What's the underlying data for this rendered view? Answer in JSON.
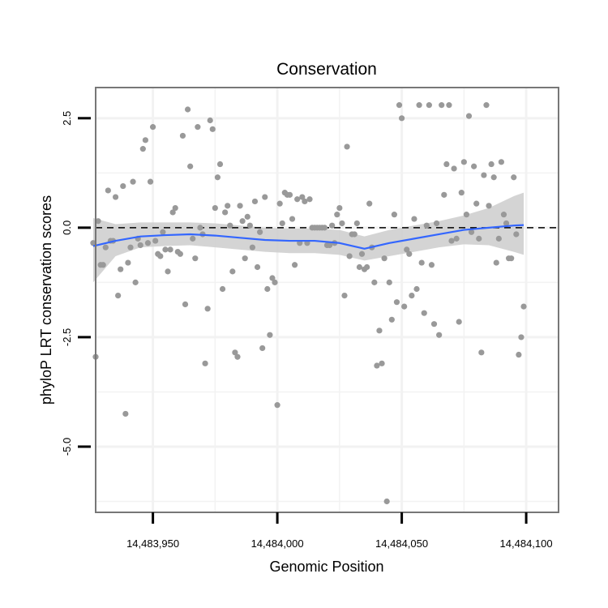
{
  "chart_data": {
    "type": "scatter",
    "title": "Conservation",
    "xlabel": "Genomic Position",
    "ylabel": "phyloP LRT conservation scores",
    "xlim": [
      14483927,
      14484113
    ],
    "ylim": [
      -6.5,
      3.2
    ],
    "x_ticks": [
      14483950,
      14484000,
      14484050,
      14484100
    ],
    "x_tick_labels": [
      "14,483,950",
      "14,484,000",
      "14,484,050",
      "14,484,100"
    ],
    "y_ticks": [
      -5.0,
      -2.5,
      0.0,
      2.5
    ],
    "y_tick_labels": [
      "-5.0",
      "-2.5",
      "0.0",
      "2.5"
    ],
    "reference_line": {
      "y": 0,
      "style": "dashed"
    },
    "grid": true,
    "colors": {
      "points": "#999999",
      "smooth_line": "#3366ff",
      "confidence_band": "#cccccc",
      "panel_border": "#777777",
      "grid": "#f2f2f2",
      "reference_line": "#000000"
    },
    "points": [
      {
        "x": 14483926,
        "y": -0.35
      },
      {
        "x": 14483927,
        "y": -2.95
      },
      {
        "x": 14483928,
        "y": 0.15
      },
      {
        "x": 14483929,
        "y": -0.85
      },
      {
        "x": 14483930,
        "y": -0.85
      },
      {
        "x": 14483931,
        "y": -0.45
      },
      {
        "x": 14483932,
        "y": 0.85
      },
      {
        "x": 14483933,
        "y": -0.3
      },
      {
        "x": 14483934,
        "y": -0.3
      },
      {
        "x": 14483935,
        "y": 0.7
      },
      {
        "x": 14483936,
        "y": -1.55
      },
      {
        "x": 14483937,
        "y": -0.95
      },
      {
        "x": 14483938,
        "y": 0.95
      },
      {
        "x": 14483939,
        "y": -4.25
      },
      {
        "x": 14483940,
        "y": -0.8
      },
      {
        "x": 14483941,
        "y": -0.45
      },
      {
        "x": 14483942,
        "y": 1.05
      },
      {
        "x": 14483943,
        "y": -1.25
      },
      {
        "x": 14483944,
        "y": -0.25
      },
      {
        "x": 14483945,
        "y": -0.4
      },
      {
        "x": 14483946,
        "y": 1.8
      },
      {
        "x": 14483947,
        "y": 2.0
      },
      {
        "x": 14483948,
        "y": -0.35
      },
      {
        "x": 14483949,
        "y": 1.05
      },
      {
        "x": 14483950,
        "y": 2.3
      },
      {
        "x": 14483951,
        "y": -0.3
      },
      {
        "x": 14483952,
        "y": -0.6
      },
      {
        "x": 14483953,
        "y": -0.65
      },
      {
        "x": 14483954,
        "y": -0.1
      },
      {
        "x": 14483955,
        "y": -0.5
      },
      {
        "x": 14483956,
        "y": -1.0
      },
      {
        "x": 14483957,
        "y": -0.5
      },
      {
        "x": 14483958,
        "y": 0.35
      },
      {
        "x": 14483959,
        "y": 0.45
      },
      {
        "x": 14483960,
        "y": -0.55
      },
      {
        "x": 14483961,
        "y": -0.6
      },
      {
        "x": 14483962,
        "y": 2.1
      },
      {
        "x": 14483963,
        "y": -1.75
      },
      {
        "x": 14483964,
        "y": 2.7
      },
      {
        "x": 14483965,
        "y": 1.4
      },
      {
        "x": 14483966,
        "y": -0.25
      },
      {
        "x": 14483967,
        "y": -0.7
      },
      {
        "x": 14483968,
        "y": 2.3
      },
      {
        "x": 14483969,
        "y": 0.0
      },
      {
        "x": 14483970,
        "y": -0.15
      },
      {
        "x": 14483971,
        "y": -3.1
      },
      {
        "x": 14483972,
        "y": -1.85
      },
      {
        "x": 14483973,
        "y": 2.45
      },
      {
        "x": 14483974,
        "y": 2.25
      },
      {
        "x": 14483975,
        "y": 0.45
      },
      {
        "x": 14483976,
        "y": 1.15
      },
      {
        "x": 14483977,
        "y": 1.45
      },
      {
        "x": 14483978,
        "y": -1.4
      },
      {
        "x": 14483979,
        "y": 0.35
      },
      {
        "x": 14483980,
        "y": 0.5
      },
      {
        "x": 14483981,
        "y": 0.05
      },
      {
        "x": 14483982,
        "y": -1.0
      },
      {
        "x": 14483983,
        "y": -2.85
      },
      {
        "x": 14483984,
        "y": -2.95
      },
      {
        "x": 14483985,
        "y": 0.5
      },
      {
        "x": 14483986,
        "y": 0.15
      },
      {
        "x": 14483987,
        "y": -0.7
      },
      {
        "x": 14483988,
        "y": 0.25
      },
      {
        "x": 14483989,
        "y": 0.05
      },
      {
        "x": 14483990,
        "y": -0.45
      },
      {
        "x": 14483991,
        "y": 0.6
      },
      {
        "x": 14483992,
        "y": -0.9
      },
      {
        "x": 14483993,
        "y": -0.1
      },
      {
        "x": 14483994,
        "y": -2.75
      },
      {
        "x": 14483995,
        "y": 0.7
      },
      {
        "x": 14483996,
        "y": -1.4
      },
      {
        "x": 14483997,
        "y": -2.45
      },
      {
        "x": 14483998,
        "y": -1.15
      },
      {
        "x": 14483999,
        "y": -1.25
      },
      {
        "x": 14484000,
        "y": -4.05
      },
      {
        "x": 14484001,
        "y": 0.55
      },
      {
        "x": 14484002,
        "y": 0.1
      },
      {
        "x": 14484003,
        "y": 0.8
      },
      {
        "x": 14484004,
        "y": 0.75
      },
      {
        "x": 14484005,
        "y": 0.75
      },
      {
        "x": 14484006,
        "y": 0.2
      },
      {
        "x": 14484007,
        "y": -0.85
      },
      {
        "x": 14484008,
        "y": 0.65
      },
      {
        "x": 14484009,
        "y": -0.35
      },
      {
        "x": 14484010,
        "y": 0.7
      },
      {
        "x": 14484011,
        "y": 0.6
      },
      {
        "x": 14484012,
        "y": -0.35
      },
      {
        "x": 14484013,
        "y": 0.65
      },
      {
        "x": 14484014,
        "y": 0.0
      },
      {
        "x": 14484015,
        "y": 0.0
      },
      {
        "x": 14484016,
        "y": 0.0
      },
      {
        "x": 14484017,
        "y": 0.0
      },
      {
        "x": 14484018,
        "y": 0.0
      },
      {
        "x": 14484019,
        "y": 0.0
      },
      {
        "x": 14484020,
        "y": -0.4
      },
      {
        "x": 14484021,
        "y": -0.4
      },
      {
        "x": 14484022,
        "y": 0.05
      },
      {
        "x": 14484023,
        "y": -0.35
      },
      {
        "x": 14484024,
        "y": 0.3
      },
      {
        "x": 14484025,
        "y": 0.45
      },
      {
        "x": 14484026,
        "y": 0.1
      },
      {
        "x": 14484027,
        "y": -1.55
      },
      {
        "x": 14484028,
        "y": 1.85
      },
      {
        "x": 14484029,
        "y": -0.65
      },
      {
        "x": 14484030,
        "y": -0.15
      },
      {
        "x": 14484031,
        "y": -0.15
      },
      {
        "x": 14484032,
        "y": 0.1
      },
      {
        "x": 14484033,
        "y": -0.9
      },
      {
        "x": 14484034,
        "y": -0.6
      },
      {
        "x": 14484035,
        "y": -0.95
      },
      {
        "x": 14484036,
        "y": -0.9
      },
      {
        "x": 14484037,
        "y": 0.55
      },
      {
        "x": 14484038,
        "y": -0.45
      },
      {
        "x": 14484039,
        "y": -1.25
      },
      {
        "x": 14484040,
        "y": -3.15
      },
      {
        "x": 14484041,
        "y": -2.35
      },
      {
        "x": 14484042,
        "y": -3.1
      },
      {
        "x": 14484043,
        "y": -0.7
      },
      {
        "x": 14484044,
        "y": -6.25
      },
      {
        "x": 14484045,
        "y": -1.25
      },
      {
        "x": 14484046,
        "y": -2.1
      },
      {
        "x": 14484047,
        "y": 0.3
      },
      {
        "x": 14484048,
        "y": -1.7
      },
      {
        "x": 14484049,
        "y": 2.8
      },
      {
        "x": 14484050,
        "y": 2.5
      },
      {
        "x": 14484051,
        "y": -1.8
      },
      {
        "x": 14484052,
        "y": -0.5
      },
      {
        "x": 14484053,
        "y": -0.6
      },
      {
        "x": 14484054,
        "y": -1.55
      },
      {
        "x": 14484055,
        "y": 0.2
      },
      {
        "x": 14484056,
        "y": -1.4
      },
      {
        "x": 14484057,
        "y": 2.8
      },
      {
        "x": 14484058,
        "y": -0.8
      },
      {
        "x": 14484059,
        "y": -1.95
      },
      {
        "x": 14484060,
        "y": 0.05
      },
      {
        "x": 14484061,
        "y": 2.8
      },
      {
        "x": 14484062,
        "y": -0.85
      },
      {
        "x": 14484063,
        "y": -2.2
      },
      {
        "x": 14484064,
        "y": 0.1
      },
      {
        "x": 14484065,
        "y": -2.45
      },
      {
        "x": 14484066,
        "y": 2.8
      },
      {
        "x": 14484067,
        "y": 0.75
      },
      {
        "x": 14484068,
        "y": 1.45
      },
      {
        "x": 14484069,
        "y": 2.8
      },
      {
        "x": 14484070,
        "y": -0.3
      },
      {
        "x": 14484071,
        "y": 1.35
      },
      {
        "x": 14484072,
        "y": -0.25
      },
      {
        "x": 14484073,
        "y": -2.15
      },
      {
        "x": 14484074,
        "y": 0.8
      },
      {
        "x": 14484075,
        "y": 1.5
      },
      {
        "x": 14484076,
        "y": 0.3
      },
      {
        "x": 14484077,
        "y": 2.55
      },
      {
        "x": 14484078,
        "y": -0.1
      },
      {
        "x": 14484079,
        "y": 1.4
      },
      {
        "x": 14484080,
        "y": 0.55
      },
      {
        "x": 14484081,
        "y": -0.25
      },
      {
        "x": 14484082,
        "y": -2.85
      },
      {
        "x": 14484083,
        "y": 1.2
      },
      {
        "x": 14484084,
        "y": 2.8
      },
      {
        "x": 14484085,
        "y": 0.5
      },
      {
        "x": 14484086,
        "y": 1.45
      },
      {
        "x": 14484087,
        "y": 1.15
      },
      {
        "x": 14484088,
        "y": -0.8
      },
      {
        "x": 14484089,
        "y": -0.25
      },
      {
        "x": 14484090,
        "y": 1.5
      },
      {
        "x": 14484091,
        "y": 0.3
      },
      {
        "x": 14484092,
        "y": 0.1
      },
      {
        "x": 14484093,
        "y": -0.7
      },
      {
        "x": 14484094,
        "y": -0.7
      },
      {
        "x": 14484095,
        "y": 1.15
      },
      {
        "x": 14484096,
        "y": -0.15
      },
      {
        "x": 14484097,
        "y": -2.9
      },
      {
        "x": 14484098,
        "y": -2.5
      },
      {
        "x": 14484099,
        "y": -1.8
      }
    ],
    "smooth_curve": [
      {
        "x": 14483926,
        "y": -0.42,
        "lo": -1.25,
        "hi": 0.22
      },
      {
        "x": 14483935,
        "y": -0.3,
        "lo": -0.65,
        "hi": 0.08
      },
      {
        "x": 14483945,
        "y": -0.2,
        "lo": -0.45,
        "hi": 0.12
      },
      {
        "x": 14483955,
        "y": -0.17,
        "lo": -0.42,
        "hi": 0.12
      },
      {
        "x": 14483965,
        "y": -0.15,
        "lo": -0.4,
        "hi": 0.12
      },
      {
        "x": 14483975,
        "y": -0.18,
        "lo": -0.45,
        "hi": 0.1
      },
      {
        "x": 14483985,
        "y": -0.23,
        "lo": -0.5,
        "hi": 0.05
      },
      {
        "x": 14483995,
        "y": -0.28,
        "lo": -0.55,
        "hi": 0.0
      },
      {
        "x": 14484005,
        "y": -0.3,
        "lo": -0.58,
        "hi": -0.02
      },
      {
        "x": 14484015,
        "y": -0.3,
        "lo": -0.58,
        "hi": -0.02
      },
      {
        "x": 14484025,
        "y": -0.35,
        "lo": -0.62,
        "hi": -0.05
      },
      {
        "x": 14484035,
        "y": -0.48,
        "lo": -0.75,
        "hi": -0.2
      },
      {
        "x": 14484045,
        "y": -0.35,
        "lo": -0.65,
        "hi": -0.05
      },
      {
        "x": 14484055,
        "y": -0.25,
        "lo": -0.55,
        "hi": 0.05
      },
      {
        "x": 14484065,
        "y": -0.15,
        "lo": -0.45,
        "hi": 0.15
      },
      {
        "x": 14484075,
        "y": -0.05,
        "lo": -0.38,
        "hi": 0.28
      },
      {
        "x": 14484085,
        "y": 0.0,
        "lo": -0.4,
        "hi": 0.45
      },
      {
        "x": 14484095,
        "y": 0.05,
        "lo": -0.55,
        "hi": 0.72
      },
      {
        "x": 14484099,
        "y": 0.06,
        "lo": -0.62,
        "hi": 0.8
      }
    ]
  }
}
